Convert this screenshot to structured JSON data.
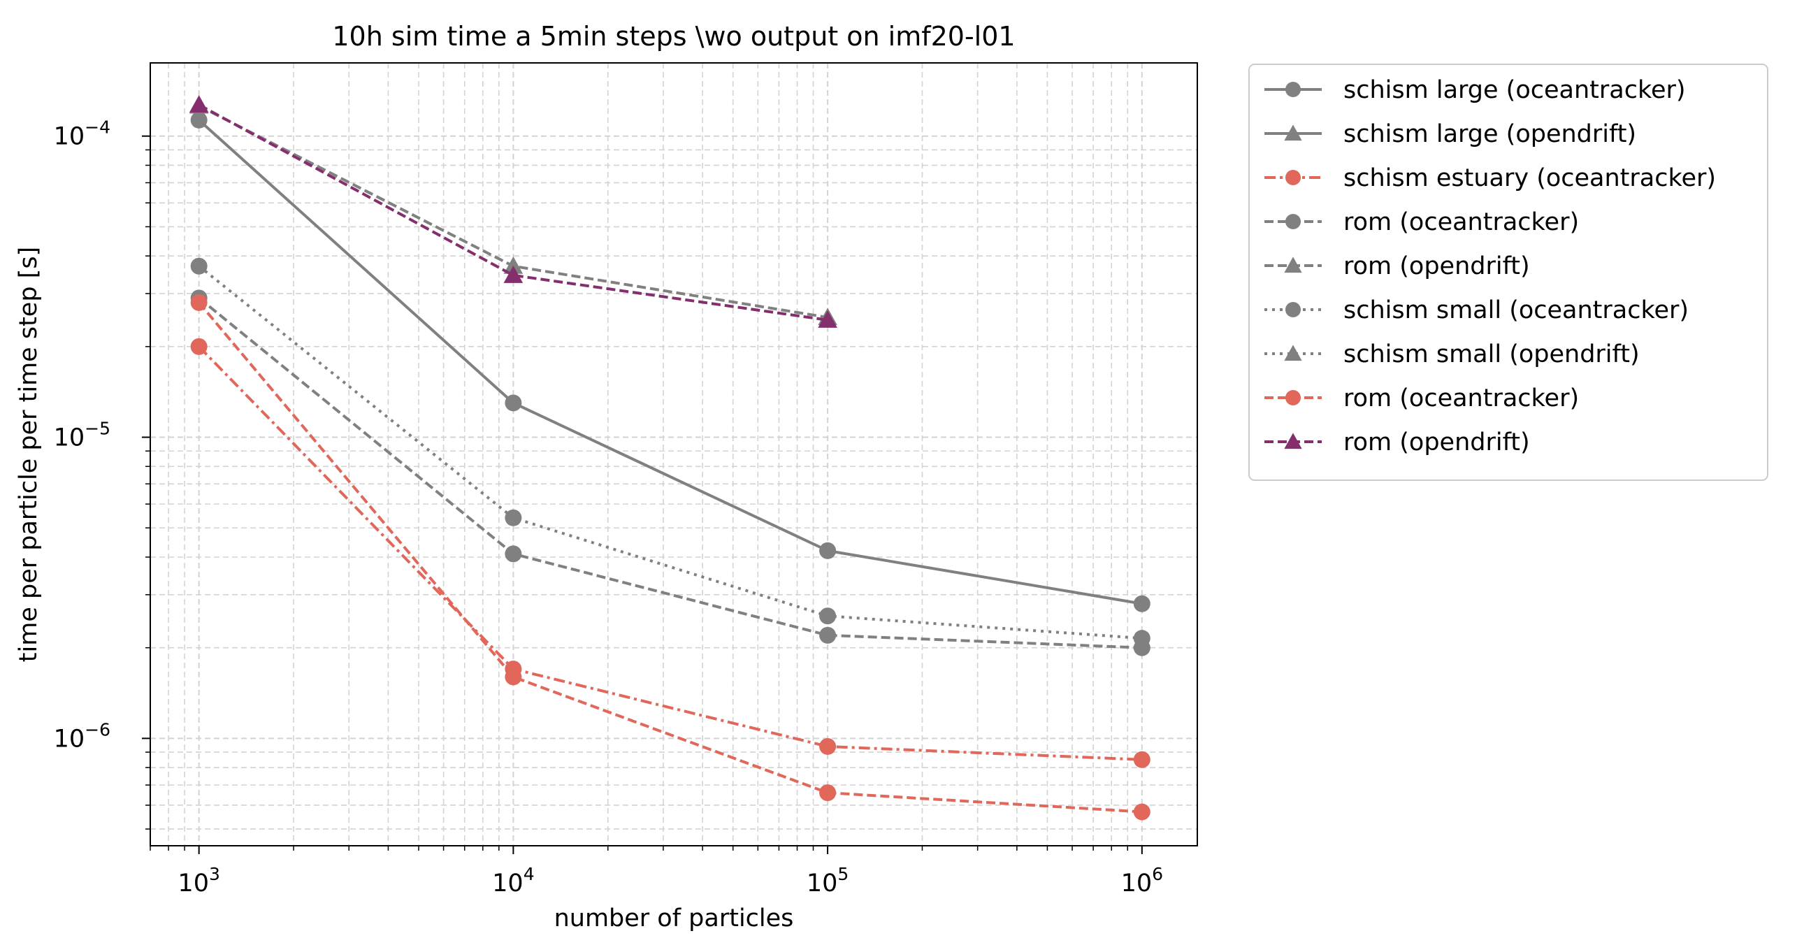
{
  "chart_data": {
    "type": "line",
    "title": "10h sim time a 5min steps \\wo output on imf20-l01",
    "xlabel": "number of particles",
    "ylabel": "time per particle per time step [s]",
    "xscale": "log",
    "yscale": "log",
    "xlim": [
      700,
      1500000
    ],
    "ylim": [
      4.4e-07,
      0.000175
    ],
    "grid": "both (major and minor), dashed light gray",
    "legend": "outside right, upper",
    "x_ticks": [
      {
        "value": 1000,
        "base": "10",
        "exp": "3"
      },
      {
        "value": 10000,
        "base": "10",
        "exp": "4"
      },
      {
        "value": 100000,
        "base": "10",
        "exp": "5"
      },
      {
        "value": 1000000,
        "base": "10",
        "exp": "6"
      }
    ],
    "y_ticks": [
      {
        "value": 1e-06,
        "base": "10",
        "exp": "−6"
      },
      {
        "value": 1e-05,
        "base": "10",
        "exp": "−5"
      },
      {
        "value": 0.0001,
        "base": "10",
        "exp": "−4"
      }
    ],
    "series": [
      {
        "name": "schism large (oceantracker)",
        "color": "#808080",
        "dash": "solid",
        "marker": "circle",
        "x": [
          1000,
          10000,
          100000,
          1000000
        ],
        "y": [
          0.000113,
          1.3e-05,
          4.2e-06,
          2.8e-06
        ]
      },
      {
        "name": "schism large (opendrift)",
        "color": "#808080",
        "dash": "solid",
        "marker": "triangle",
        "x": [],
        "y": []
      },
      {
        "name": "schism estuary (oceantracker)",
        "color": "#e0675a",
        "dash": "dashdot",
        "marker": "circle",
        "x": [
          1000,
          10000,
          100000,
          1000000
        ],
        "y": [
          2e-05,
          1.7e-06,
          9.4e-07,
          8.5e-07
        ]
      },
      {
        "name": "rom (oceantracker)",
        "color": "#808080",
        "dash": "dashed",
        "marker": "circle",
        "x": [
          1000,
          10000,
          100000,
          1000000
        ],
        "y": [
          2.9e-05,
          4.1e-06,
          2.2e-06,
          2e-06
        ]
      },
      {
        "name": "rom (opendrift)",
        "color": "#808080",
        "dash": "dashed",
        "marker": "triangle",
        "x": [
          1000,
          10000,
          100000
        ],
        "y": [
          0.000126,
          3.7e-05,
          2.5e-05
        ]
      },
      {
        "name": "schism small (oceantracker)",
        "color": "#808080",
        "dash": "dotted",
        "marker": "circle",
        "x": [
          1000,
          10000,
          100000,
          1000000
        ],
        "y": [
          3.7e-05,
          5.4e-06,
          2.55e-06,
          2.15e-06
        ]
      },
      {
        "name": "schism small (opendrift)",
        "color": "#808080",
        "dash": "dotted",
        "marker": "triangle",
        "x": [],
        "y": []
      },
      {
        "name": "rom (oceantracker)",
        "color": "#e0675a",
        "dash": "dashed",
        "marker": "circle",
        "x": [
          1000,
          10000,
          100000,
          1000000
        ],
        "y": [
          2.8e-05,
          1.6e-06,
          6.6e-07,
          5.7e-07
        ]
      },
      {
        "name": "rom (opendrift)",
        "color": "#852e6e",
        "dash": "dashed",
        "marker": "triangle",
        "x": [
          1000,
          10000,
          100000
        ],
        "y": [
          0.000127,
          3.45e-05,
          2.45e-05
        ]
      }
    ]
  }
}
